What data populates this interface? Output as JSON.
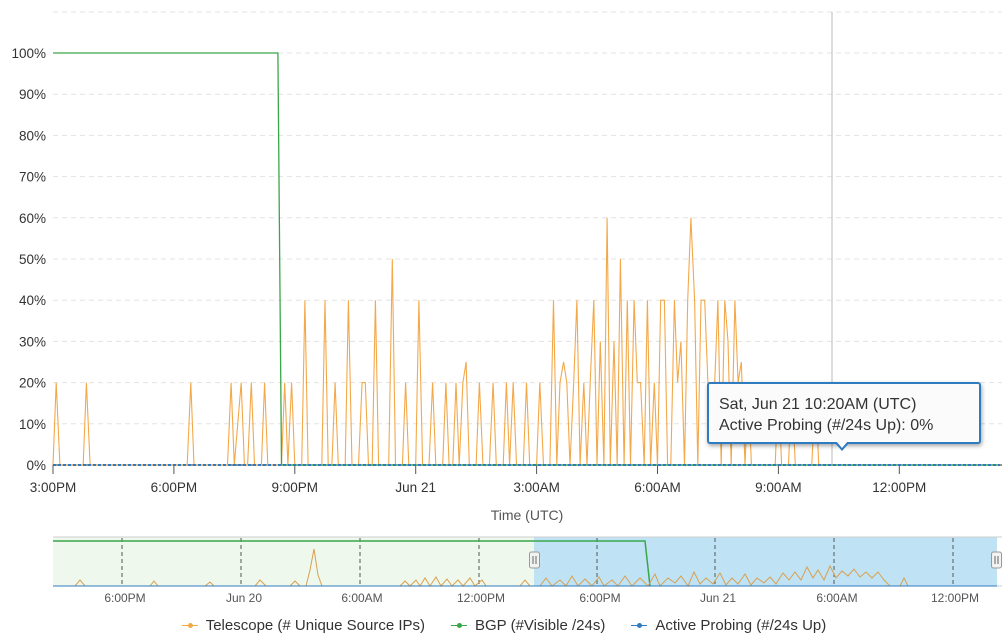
{
  "chart_data": {
    "type": "line",
    "xlabel": "Time (UTC)",
    "ylabel": "",
    "ylim": [
      0,
      100
    ],
    "y_ticks": [
      "0%",
      "10%",
      "20%",
      "30%",
      "40%",
      "50%",
      "60%",
      "70%",
      "80%",
      "90%",
      "100%"
    ],
    "x_ticks": [
      "3:00PM",
      "6:00PM",
      "9:00PM",
      "Jun 21",
      "3:00AM",
      "6:00AM",
      "9:00AM",
      "12:00PM"
    ],
    "x_range_hours": [
      15,
      38.5
    ],
    "grid": "horizontal dashed",
    "legend_position": "bottom",
    "series": [
      {
        "name": "Telescope (# Unique Source IPs)",
        "color": "#f3a84a",
        "points": [
          [
            15.0,
            0
          ],
          [
            15.08,
            20
          ],
          [
            15.17,
            0
          ],
          [
            15.75,
            0
          ],
          [
            15.83,
            20
          ],
          [
            15.92,
            0
          ],
          [
            18.33,
            0
          ],
          [
            18.42,
            20
          ],
          [
            18.5,
            0
          ],
          [
            19.33,
            0
          ],
          [
            19.42,
            20
          ],
          [
            19.5,
            0
          ],
          [
            19.67,
            20
          ],
          [
            19.75,
            0
          ],
          [
            19.83,
            0
          ],
          [
            19.92,
            20
          ],
          [
            20.0,
            0
          ],
          [
            20.17,
            0
          ],
          [
            20.25,
            20
          ],
          [
            20.33,
            0
          ],
          [
            20.67,
            0
          ],
          [
            20.75,
            20
          ],
          [
            20.83,
            0
          ],
          [
            20.92,
            20
          ],
          [
            21.0,
            0
          ],
          [
            21.17,
            0
          ],
          [
            21.25,
            40
          ],
          [
            21.33,
            0
          ],
          [
            21.67,
            0
          ],
          [
            21.75,
            40
          ],
          [
            21.83,
            0
          ],
          [
            21.92,
            0
          ],
          [
            22.0,
            20
          ],
          [
            22.08,
            0
          ],
          [
            22.25,
            0
          ],
          [
            22.33,
            40
          ],
          [
            22.42,
            0
          ],
          [
            22.58,
            0
          ],
          [
            22.67,
            20
          ],
          [
            22.75,
            20
          ],
          [
            22.83,
            0
          ],
          [
            22.92,
            0
          ],
          [
            23.0,
            40
          ],
          [
            23.08,
            0
          ],
          [
            23.33,
            0
          ],
          [
            23.42,
            50
          ],
          [
            23.5,
            0
          ],
          [
            23.67,
            0
          ],
          [
            23.75,
            20
          ],
          [
            23.83,
            0
          ],
          [
            24.0,
            0
          ],
          [
            24.08,
            40
          ],
          [
            24.17,
            0
          ],
          [
            24.33,
            0
          ],
          [
            24.42,
            20
          ],
          [
            24.5,
            0
          ],
          [
            24.67,
            0
          ],
          [
            24.75,
            20
          ],
          [
            24.83,
            0
          ],
          [
            24.92,
            0
          ],
          [
            25.0,
            20
          ],
          [
            25.08,
            0
          ],
          [
            25.17,
            20
          ],
          [
            25.25,
            25
          ],
          [
            25.33,
            0
          ],
          [
            25.5,
            0
          ],
          [
            25.58,
            20
          ],
          [
            25.67,
            0
          ],
          [
            25.83,
            0
          ],
          [
            25.92,
            20
          ],
          [
            26.0,
            0
          ],
          [
            26.17,
            0
          ],
          [
            26.25,
            20
          ],
          [
            26.33,
            0
          ],
          [
            26.42,
            20
          ],
          [
            26.5,
            0
          ],
          [
            26.67,
            0
          ],
          [
            26.75,
            20
          ],
          [
            26.83,
            0
          ],
          [
            27.0,
            0
          ],
          [
            27.08,
            20
          ],
          [
            27.17,
            0
          ],
          [
            27.33,
            0
          ],
          [
            27.42,
            40
          ],
          [
            27.5,
            0
          ],
          [
            27.58,
            20
          ],
          [
            27.67,
            25
          ],
          [
            27.75,
            20
          ],
          [
            27.83,
            0
          ],
          [
            27.92,
            20
          ],
          [
            28.0,
            40
          ],
          [
            28.08,
            0
          ],
          [
            28.17,
            20
          ],
          [
            28.25,
            0
          ],
          [
            28.33,
            20
          ],
          [
            28.42,
            40
          ],
          [
            28.5,
            0
          ],
          [
            28.58,
            30
          ],
          [
            28.67,
            0
          ],
          [
            28.75,
            60
          ],
          [
            28.83,
            0
          ],
          [
            28.92,
            30
          ],
          [
            29.0,
            0
          ],
          [
            29.08,
            50
          ],
          [
            29.17,
            0
          ],
          [
            29.25,
            40
          ],
          [
            29.33,
            0
          ],
          [
            29.42,
            40
          ],
          [
            29.5,
            20
          ],
          [
            29.58,
            20
          ],
          [
            29.67,
            0
          ],
          [
            29.75,
            40
          ],
          [
            29.83,
            0
          ],
          [
            29.92,
            20
          ],
          [
            30.0,
            0
          ],
          [
            30.08,
            40
          ],
          [
            30.17,
            40
          ],
          [
            30.25,
            0
          ],
          [
            30.33,
            0
          ],
          [
            30.42,
            40
          ],
          [
            30.5,
            20
          ],
          [
            30.58,
            30
          ],
          [
            30.67,
            0
          ],
          [
            30.75,
            40
          ],
          [
            30.83,
            60
          ],
          [
            30.92,
            40
          ],
          [
            31.0,
            0
          ],
          [
            31.08,
            40
          ],
          [
            31.17,
            40
          ],
          [
            31.25,
            20
          ],
          [
            31.33,
            20
          ],
          [
            31.42,
            20
          ],
          [
            31.5,
            40
          ],
          [
            31.58,
            0
          ],
          [
            31.67,
            40
          ],
          [
            31.75,
            30
          ],
          [
            31.83,
            0
          ],
          [
            31.92,
            40
          ],
          [
            32.0,
            20
          ],
          [
            32.08,
            25
          ],
          [
            32.17,
            0
          ],
          [
            32.25,
            20
          ],
          [
            32.33,
            0
          ],
          [
            32.92,
            0
          ],
          [
            33.0,
            20
          ],
          [
            33.08,
            0
          ],
          [
            33.25,
            0
          ],
          [
            33.33,
            20
          ],
          [
            33.42,
            0
          ],
          [
            33.83,
            0
          ],
          [
            33.92,
            20
          ],
          [
            34.0,
            0
          ],
          [
            34.17,
            0
          ],
          [
            38.5,
            0
          ]
        ]
      },
      {
        "name": "BGP (#Visible /24s)",
        "color": "#3aa64a",
        "points": [
          [
            15.0,
            100
          ],
          [
            20.58,
            100
          ],
          [
            20.67,
            0
          ],
          [
            38.5,
            0
          ]
        ]
      },
      {
        "name": "Active Probing (#/24s Up)",
        "color": "#2f7bbf",
        "points": [
          [
            15.0,
            0
          ],
          [
            38.5,
            0
          ]
        ]
      }
    ]
  },
  "crosshair_time_hours": 34.33,
  "tooltip": {
    "title": "Sat, Jun 21 10:20AM (UTC)",
    "line": "Active Probing (#/24s Up): 0%"
  },
  "navigator": {
    "ticks": [
      "6:00PM",
      "Jun 20",
      "6:00AM",
      "12:00PM",
      "6:00PM",
      "Jun 21",
      "6:00AM",
      "12:00PM"
    ]
  },
  "legend": [
    {
      "label": "Telescope (# Unique Source IPs)",
      "color": "#f3a84a"
    },
    {
      "label": "BGP (#Visible /24s)",
      "color": "#3aa64a"
    },
    {
      "label": "Active Probing (#/24s Up)",
      "color": "#2f7bbf"
    }
  ]
}
